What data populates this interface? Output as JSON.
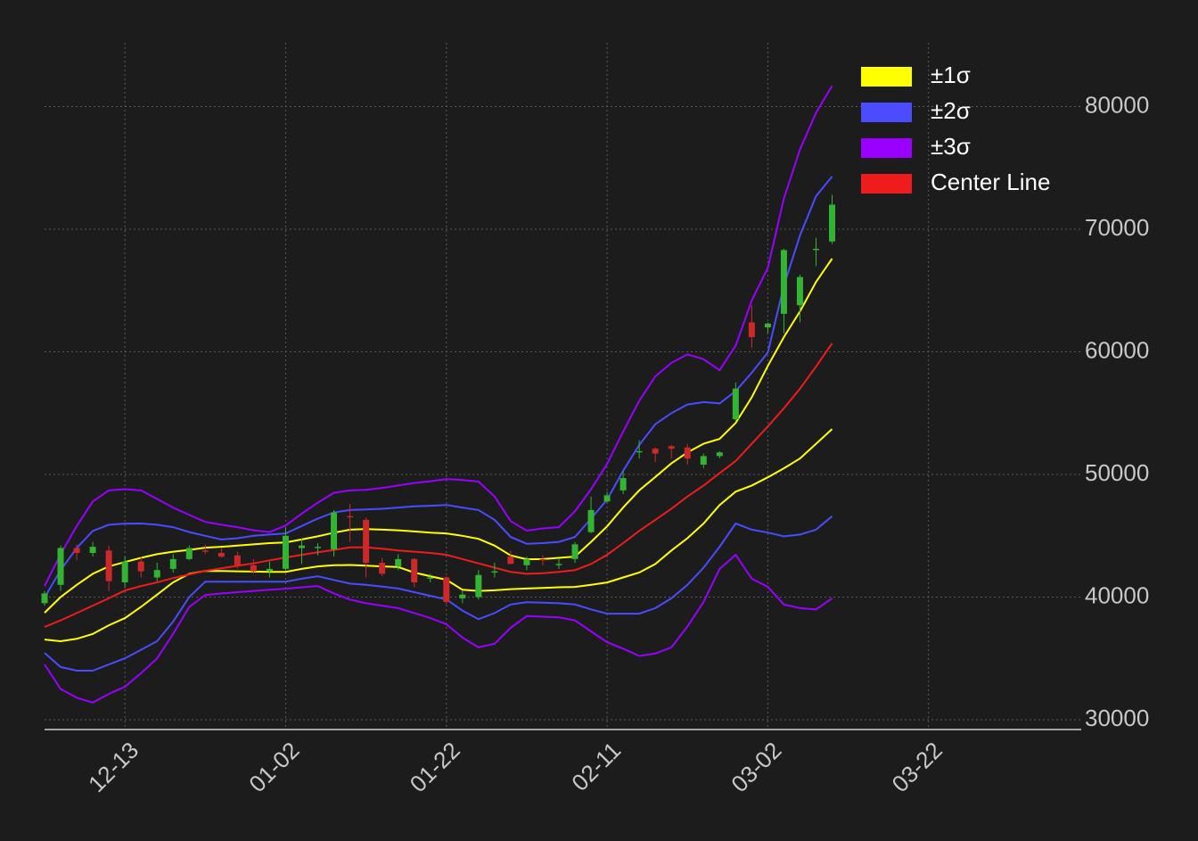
{
  "chart_data": {
    "type": "candlestick",
    "x": [
      "12-03",
      "12-05",
      "12-07",
      "12-09",
      "12-11",
      "12-13",
      "12-15",
      "12-17",
      "12-19",
      "12-21",
      "12-23",
      "12-25",
      "12-27",
      "12-29",
      "12-31",
      "01-02",
      "01-04",
      "01-06",
      "01-08",
      "01-10",
      "01-12",
      "01-14",
      "01-16",
      "01-18",
      "01-20",
      "01-22",
      "01-24",
      "01-26",
      "01-28",
      "01-30",
      "02-01",
      "02-03",
      "02-05",
      "02-07",
      "02-09",
      "02-11",
      "02-13",
      "02-15",
      "02-17",
      "02-19",
      "02-21",
      "02-23",
      "02-25",
      "02-27",
      "02-29",
      "03-02",
      "03-04",
      "03-06",
      "03-08",
      "03-10"
    ],
    "candles": {
      "up_color": "#33b533",
      "down_color": "#cc2a2a",
      "open": [
        39500,
        41000,
        44000,
        43600,
        43800,
        41200,
        42900,
        41600,
        42300,
        43100,
        43800,
        43600,
        43400,
        42600,
        42100,
        42300,
        44000,
        44000,
        43900,
        46600,
        46300,
        42800,
        42500,
        43100,
        41500,
        41600,
        39900,
        40000,
        42000,
        43300,
        42600,
        43100,
        42600,
        43100,
        45300,
        47800,
        48700,
        51800,
        52100,
        52300,
        52200,
        50800,
        51500,
        54500,
        62400,
        62000,
        63100,
        63800,
        68300,
        69000
      ],
      "high": [
        40500,
        44200,
        44300,
        44500,
        44200,
        43300,
        43300,
        42800,
        43500,
        44200,
        44300,
        44000,
        43700,
        43100,
        42900,
        45700,
        44800,
        44400,
        47100,
        47600,
        46500,
        43200,
        43500,
        43200,
        41900,
        41700,
        40500,
        42200,
        42800,
        43800,
        43300,
        43400,
        43100,
        44500,
        48200,
        48600,
        50300,
        52800,
        52200,
        52400,
        52500,
        51700,
        51900,
        57500,
        63800,
        62400,
        68400,
        66300,
        69300,
        72800
      ],
      "low": [
        39300,
        40500,
        43000,
        43300,
        40500,
        40800,
        41600,
        41300,
        42000,
        43000,
        43500,
        43200,
        42300,
        41900,
        41600,
        42200,
        42700,
        43400,
        43300,
        44500,
        41600,
        41700,
        42200,
        40800,
        41200,
        39400,
        39500,
        39800,
        41600,
        42700,
        42200,
        42600,
        42300,
        42800,
        45200,
        47700,
        48400,
        51300,
        51000,
        51300,
        50800,
        50500,
        51300,
        54300,
        60300,
        61500,
        61500,
        62400,
        67000,
        68800
      ],
      "close": [
        40300,
        44000,
        43600,
        44100,
        41300,
        42900,
        42100,
        42200,
        43100,
        44000,
        43700,
        43300,
        42600,
        42100,
        42300,
        45000,
        44200,
        44100,
        46900,
        46500,
        42800,
        41900,
        43100,
        41200,
        41600,
        39600,
        40200,
        41800,
        42100,
        42700,
        43100,
        43000,
        42700,
        44300,
        47100,
        48300,
        49700,
        51900,
        51700,
        52100,
        51300,
        51500,
        51800,
        57000,
        61200,
        62300,
        68300,
        66100,
        68400,
        72000
      ]
    },
    "series": [
      {
        "name": "±1σ",
        "color": "#ffff00",
        "upper": [
          38720,
          40000,
          41000,
          41900,
          42500,
          42860,
          43200,
          43500,
          43700,
          43850,
          44030,
          44100,
          44200,
          44300,
          44400,
          44460,
          44700,
          44950,
          45250,
          45500,
          45550,
          45500,
          45450,
          45350,
          45250,
          45190,
          45000,
          44750,
          44200,
          43400,
          43080,
          43100,
          43200,
          43300,
          44500,
          45770,
          47300,
          48700,
          49800,
          50900,
          51800,
          52500,
          52900,
          54200,
          56300,
          58850,
          61200,
          63300,
          65700,
          67600
        ],
        "lower": [
          36540,
          36400,
          36600,
          37000,
          37700,
          38280,
          39200,
          40200,
          41200,
          41900,
          42140,
          42130,
          42100,
          42080,
          42060,
          42060,
          42300,
          42500,
          42600,
          42620,
          42560,
          42500,
          42450,
          42000,
          41700,
          41410,
          40600,
          40500,
          40550,
          40650,
          40700,
          40750,
          40800,
          40830,
          41000,
          41190,
          41600,
          42000,
          42700,
          43800,
          44800,
          46000,
          47500,
          48600,
          49100,
          49770,
          50500,
          51300,
          52500,
          53700
        ]
      },
      {
        "name": "±2σ",
        "color": "#4b4bff",
        "upper": [
          39960,
          42200,
          44000,
          45400,
          45900,
          45990,
          46000,
          45900,
          45700,
          45300,
          45000,
          44700,
          44800,
          45000,
          45100,
          45190,
          45800,
          46400,
          46900,
          47100,
          47150,
          47200,
          47300,
          47400,
          47450,
          47510,
          47300,
          47100,
          46300,
          44900,
          44350,
          44400,
          44500,
          44900,
          46400,
          47950,
          50300,
          52400,
          54100,
          55000,
          55700,
          55900,
          55800,
          56800,
          58300,
          59940,
          65400,
          69500,
          72700,
          74300
        ],
        "lower": [
          35450,
          34300,
          34000,
          34000,
          34500,
          35010,
          35700,
          36400,
          38000,
          40000,
          41260,
          41260,
          41260,
          41260,
          41260,
          41260,
          41500,
          41700,
          41400,
          41100,
          41000,
          40850,
          40700,
          40400,
          40100,
          39810,
          38900,
          38200,
          38700,
          39400,
          39580,
          39550,
          39500,
          39400,
          39000,
          38650,
          38650,
          38650,
          39100,
          39900,
          41000,
          42400,
          44100,
          46000,
          45500,
          45260,
          44950,
          45100,
          45500,
          46600
        ]
      },
      {
        "name": "±3σ",
        "color": "#9900ff",
        "upper": [
          40900,
          43500,
          45800,
          47800,
          48700,
          48800,
          48700,
          48000,
          47300,
          46700,
          46130,
          45900,
          45700,
          45450,
          45300,
          45840,
          46800,
          47700,
          48500,
          48700,
          48750,
          48900,
          49100,
          49300,
          49450,
          49620,
          49550,
          49420,
          48200,
          46200,
          45420,
          45600,
          45700,
          47000,
          48800,
          50860,
          53500,
          56000,
          58000,
          59100,
          59800,
          59400,
          58500,
          60500,
          64200,
          66850,
          72500,
          76500,
          79500,
          81700
        ],
        "lower": [
          34510,
          32500,
          31800,
          31400,
          32100,
          32690,
          33800,
          35000,
          37000,
          39200,
          40170,
          40300,
          40400,
          40500,
          40600,
          40680,
          40800,
          40900,
          40300,
          39800,
          39500,
          39300,
          39100,
          38700,
          38300,
          37780,
          36700,
          35900,
          36200,
          37500,
          38450,
          38400,
          38350,
          38100,
          37200,
          36320,
          35800,
          35200,
          35400,
          35900,
          37600,
          39600,
          42300,
          43450,
          41500,
          40830,
          39400,
          39100,
          39000,
          39900
        ]
      },
      {
        "name": "Center Line",
        "color": "#ee1c1c",
        "values": [
          37560,
          38100,
          38700,
          39300,
          39900,
          40540,
          40900,
          41200,
          41550,
          41850,
          42140,
          42350,
          42550,
          42750,
          43000,
          43230,
          43450,
          43650,
          43850,
          44050,
          44050,
          43950,
          43800,
          43700,
          43600,
          43450,
          43100,
          42750,
          42400,
          42050,
          41900,
          41950,
          42050,
          42200,
          42700,
          43450,
          44400,
          45400,
          46300,
          47200,
          48200,
          49100,
          50100,
          51100,
          52500,
          53910,
          55400,
          57000,
          58800,
          60700
        ]
      }
    ],
    "xlim": [
      "12-03",
      "04-10"
    ],
    "xticks": [
      "12-13",
      "01-02",
      "01-22",
      "02-11",
      "03-02",
      "03-22"
    ],
    "ylim": [
      29200,
      85200
    ],
    "yticks": [
      30000,
      40000,
      50000,
      60000,
      70000,
      80000
    ],
    "grid": true,
    "legend": "upper right"
  }
}
